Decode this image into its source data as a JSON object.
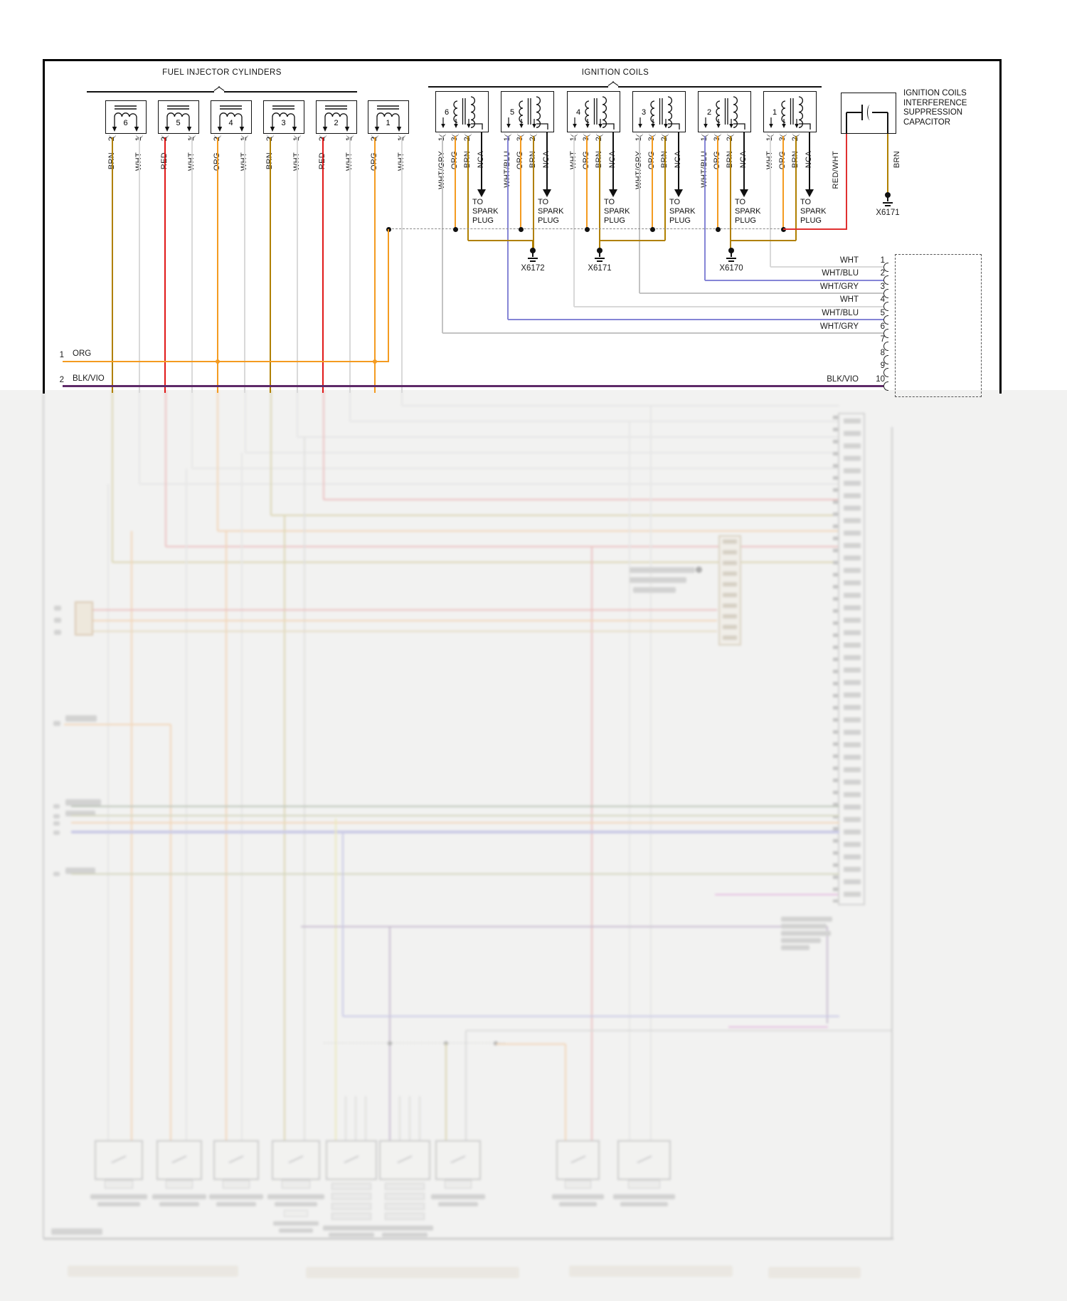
{
  "headers": {
    "fuel_injectors": "FUEL INJECTOR CYLINDERS",
    "ignition_coils": "IGNITION COILS"
  },
  "capacitor": {
    "label_lines": [
      "IGNITION COILS",
      "INTERFERENCE",
      "SUPPRESSION",
      "CAPACITOR"
    ],
    "wire_left": "RED/WHT",
    "wire_right": "BRN",
    "ground_id": "X6171"
  },
  "spark_plug_lines": [
    "TO",
    "SPARK",
    "PLUG"
  ],
  "injectors": [
    {
      "num": "6",
      "pin2_num": "2",
      "pin2_color": "BRN",
      "pin1_num": "1",
      "pin1_color": "WHT"
    },
    {
      "num": "5",
      "pin2_num": "2",
      "pin2_color": "RED",
      "pin1_num": "1",
      "pin1_color": "WHT"
    },
    {
      "num": "4",
      "pin2_num": "2",
      "pin2_color": "ORG",
      "pin1_num": "1",
      "pin1_color": "WHT"
    },
    {
      "num": "3",
      "pin2_num": "2",
      "pin2_color": "BRN",
      "pin1_num": "1",
      "pin1_color": "WHT"
    },
    {
      "num": "2",
      "pin2_num": "2",
      "pin2_color": "RED",
      "pin1_num": "1",
      "pin1_color": "WHT"
    },
    {
      "num": "1",
      "pin2_num": "2",
      "pin2_color": "ORG",
      "pin1_num": "1",
      "pin1_color": "WHT"
    }
  ],
  "coils": [
    {
      "num": "6",
      "pin1_num": "1",
      "pin1_color": "WHT/GRY",
      "pin3_num": "3",
      "pin3_color": "ORG",
      "pin2_num": "2",
      "pin2_color": "BRN",
      "out_label": "NCA"
    },
    {
      "num": "5",
      "pin1_num": "1",
      "pin1_color": "WHT/BLU",
      "pin3_num": "3",
      "pin3_color": "ORG",
      "pin2_num": "2",
      "pin2_color": "BRN",
      "out_label": "NCA"
    },
    {
      "num": "4",
      "pin1_num": "1",
      "pin1_color": "WHT",
      "pin3_num": "3",
      "pin3_color": "ORG",
      "pin2_num": "2",
      "pin2_color": "BRN",
      "out_label": "NCA"
    },
    {
      "num": "3",
      "pin1_num": "1",
      "pin1_color": "WHT/GRY",
      "pin3_num": "3",
      "pin3_color": "ORG",
      "pin2_num": "2",
      "pin2_color": "BRN",
      "out_label": "NCA"
    },
    {
      "num": "2",
      "pin1_num": "1",
      "pin1_color": "WHT/BLU",
      "pin3_num": "3",
      "pin3_color": "ORG",
      "pin2_num": "2",
      "pin2_color": "BRN",
      "out_label": "NCA"
    },
    {
      "num": "1",
      "pin1_num": "1",
      "pin1_color": "WHT",
      "pin3_num": "3",
      "pin3_color": "ORG",
      "pin2_num": "2",
      "pin2_color": "BRN",
      "out_label": "NCA"
    }
  ],
  "grounds": [
    {
      "id": "X6172"
    },
    {
      "id": "X6171"
    },
    {
      "id": "X6170"
    }
  ],
  "left_rows": [
    {
      "num": "1",
      "label": "ORG"
    },
    {
      "num": "2",
      "label": "BLK/VIO"
    }
  ],
  "ecm_rows": [
    {
      "num": "1",
      "label": "WHT"
    },
    {
      "num": "2",
      "label": "WHT/BLU"
    },
    {
      "num": "3",
      "label": "WHT/GRY"
    },
    {
      "num": "4",
      "label": "WHT"
    },
    {
      "num": "5",
      "label": "WHT/BLU"
    },
    {
      "num": "6",
      "label": "WHT/GRY"
    },
    {
      "num": "7",
      "label": ""
    },
    {
      "num": "8",
      "label": ""
    },
    {
      "num": "9",
      "label": ""
    },
    {
      "num": "10",
      "label": "BLK/VIO"
    }
  ],
  "colors": {
    "BRN": "#b08000",
    "WHT": "#d9d9d9",
    "RED": "#e01818",
    "ORG": "#f49b20",
    "WHT/GRY": "#c3c3c3",
    "WHT/BLU": "#8585d6",
    "BLK/VIO": "#5e2a68",
    "RED/WHT": "#e03030",
    "black": "#111111",
    "bus_dash": "#8a8a8a",
    "border": "#000000"
  },
  "haze_palette": {
    "white_wire": "#cfcfcf",
    "pink": "#e06868",
    "olive": "#b0a040",
    "orange": "#f0a050",
    "tan": "#d0b070",
    "dkgreen": "#5a7050",
    "ltolive": "#9aa060",
    "blue": "#8080d0",
    "yellow": "#e0d860",
    "purple": "#7a5a90",
    "magenta": "#d060c0",
    "grey": "#b0b0b0",
    "smudge": "#9a9a9a",
    "border": "#8d8d8d"
  }
}
